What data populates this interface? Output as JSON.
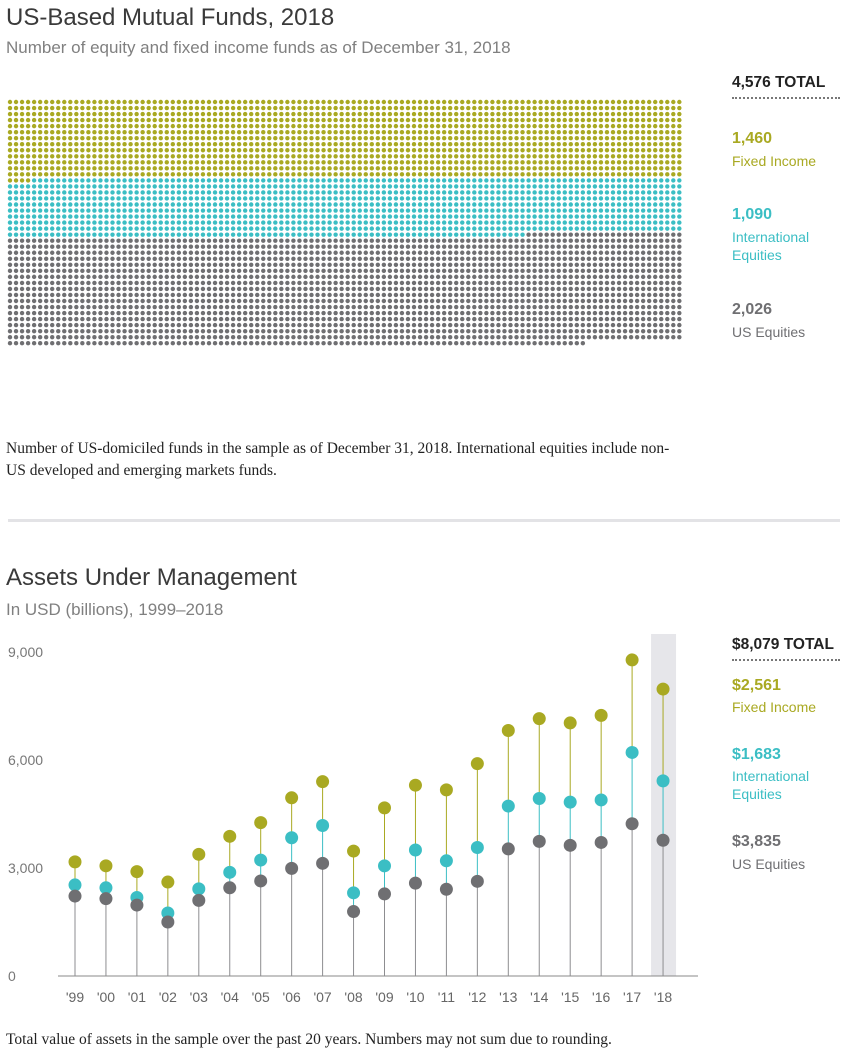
{
  "colors": {
    "fixed_income": "#a9a922",
    "international": "#3bbec4",
    "us_equities": "#6f6f72",
    "stem": "#a9a9a9",
    "highlight": "#e6e6ea"
  },
  "funds": {
    "title": "US-Based Mutual Funds, 2018",
    "subtitle": "Number of equity and fixed income funds as of December 31, 2018",
    "total_label": "4,576 TOTAL",
    "legend": [
      {
        "key": "fixed_income",
        "value": "1,460",
        "label": "Fixed Income"
      },
      {
        "key": "international",
        "value": "1,090",
        "label": "International Equities"
      },
      {
        "key": "us_equities",
        "value": "2,026",
        "label": "US Equities"
      }
    ],
    "note": "Number of US-domiciled funds in the sample as of December 31, 2018. International equities include non-US developed and emerging markets funds."
  },
  "aum": {
    "title": "Assets Under Management",
    "subtitle": "In USD (billions), 1999–2018",
    "total_label": "$8,079 TOTAL",
    "legend": [
      {
        "key": "fixed_income",
        "value": "$2,561",
        "label": "Fixed Income"
      },
      {
        "key": "international",
        "value": "$1,683",
        "label": "International Equities"
      },
      {
        "key": "us_equities",
        "value": "$3,835",
        "label": "US Equities"
      }
    ],
    "note": "Total value of assets in the sample over the past 20 years. Numbers may not sum due to rounding."
  },
  "chart_data": [
    {
      "type": "dot-matrix",
      "title": "US-Based Mutual Funds, 2018",
      "subtitle": "Number of equity and fixed income funds as of December 31, 2018",
      "total": 4576,
      "series": [
        {
          "name": "Fixed Income",
          "value": 1460
        },
        {
          "name": "International Equities",
          "value": 1090
        },
        {
          "name": "US Equities",
          "value": 2026
        }
      ]
    },
    {
      "type": "scatter",
      "title": "Assets Under Management",
      "subtitle": "In USD (billions), 1999–2018",
      "categories": [
        "'99",
        "'00",
        "'01",
        "'02",
        "'03",
        "'04",
        "'05",
        "'06",
        "'07",
        "'08",
        "'09",
        "'10",
        "'11",
        "'12",
        "'13",
        "'14",
        "'15",
        "'16",
        "'17",
        "'18"
      ],
      "y_ticks": [
        "0",
        "3,000",
        "6,000",
        "9,000"
      ],
      "ylim": [
        0,
        9000
      ],
      "grid": false,
      "highlight_category": "'18",
      "series": [
        {
          "name": "Fixed Income",
          "values": [
            3170,
            3060,
            2900,
            2610,
            3380,
            3880,
            4260,
            4950,
            5400,
            3470,
            4670,
            5300,
            5170,
            5900,
            6820,
            7150,
            7030,
            7240,
            8780,
            7970
          ]
        },
        {
          "name": "International Equities",
          "values": [
            2530,
            2450,
            2180,
            1750,
            2420,
            2880,
            3220,
            3840,
            4180,
            2310,
            3060,
            3500,
            3200,
            3570,
            4720,
            4930,
            4830,
            4890,
            6210,
            5420
          ]
        },
        {
          "name": "US Equities",
          "values": [
            2220,
            2150,
            1970,
            1500,
            2100,
            2450,
            2640,
            2990,
            3130,
            1790,
            2280,
            2580,
            2410,
            2630,
            3530,
            3740,
            3630,
            3710,
            4230,
            3770
          ]
        }
      ]
    }
  ]
}
